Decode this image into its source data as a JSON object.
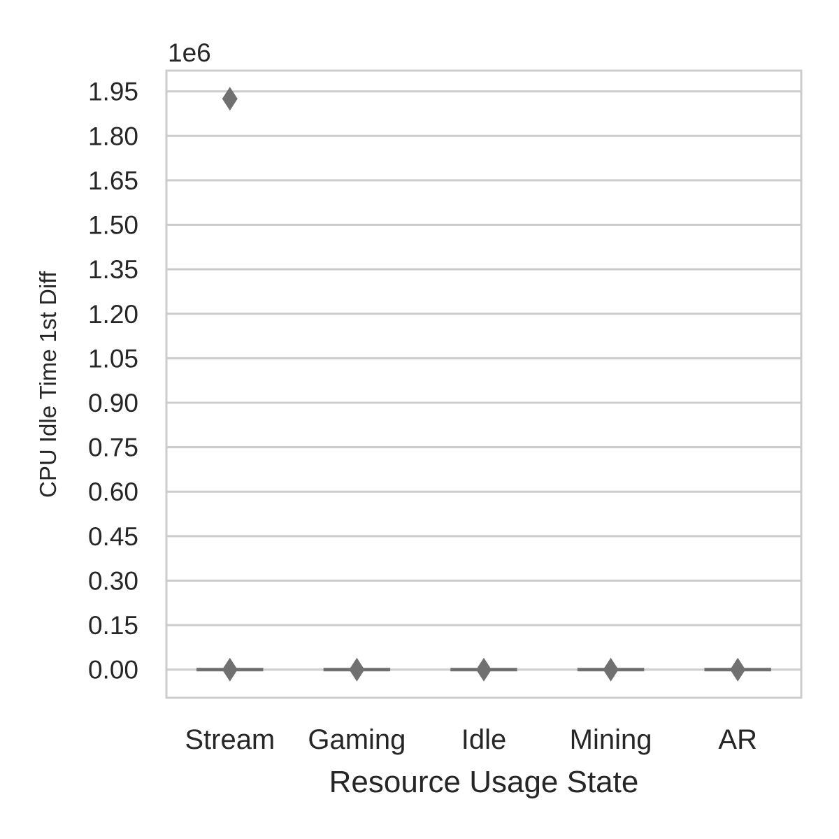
{
  "chart_data": {
    "type": "box",
    "xlabel": "Resource Usage State",
    "ylabel": "CPU Idle Time 1st Diff",
    "offset_label": "1e6",
    "categories": [
      "Stream",
      "Gaming",
      "Idle",
      "Mining",
      "AR"
    ],
    "y_ticks": [
      0.0,
      0.15,
      0.3,
      0.45,
      0.6,
      0.75,
      0.9,
      1.05,
      1.2,
      1.35,
      1.5,
      1.65,
      1.8,
      1.95
    ],
    "y_tick_labels": [
      "0.00",
      "0.15",
      "0.30",
      "0.45",
      "0.60",
      "0.75",
      "0.90",
      "1.05",
      "1.20",
      "1.35",
      "1.50",
      "1.65",
      "1.80",
      "1.95"
    ],
    "ylim": [
      -0.095,
      2.02
    ],
    "units_multiplier": 1000000,
    "boxes": [
      {
        "category": "Stream",
        "median": 0.0,
        "q1": 0.0,
        "q3": 0.0,
        "whisker_low": 0.0,
        "whisker_high": 0.0,
        "outliers": [
          0.0,
          1.925
        ]
      },
      {
        "category": "Gaming",
        "median": 0.0,
        "q1": 0.0,
        "q3": 0.0,
        "whisker_low": 0.0,
        "whisker_high": 0.0,
        "outliers": [
          0.0
        ]
      },
      {
        "category": "Idle",
        "median": 0.0,
        "q1": 0.0,
        "q3": 0.0,
        "whisker_low": 0.0,
        "whisker_high": 0.0,
        "outliers": [
          0.0
        ]
      },
      {
        "category": "Mining",
        "median": 0.0,
        "q1": 0.0,
        "q3": 0.0,
        "whisker_low": 0.0,
        "whisker_high": 0.0,
        "outliers": [
          0.0
        ]
      },
      {
        "category": "AR",
        "median": 0.0,
        "q1": 0.0,
        "q3": 0.0,
        "whisker_low": 0.0,
        "whisker_high": 0.0,
        "outliers": [
          0.0
        ]
      }
    ],
    "grid": true,
    "colors": {
      "box": "#707070",
      "grid": "#cccccc",
      "frame": "#cccccc",
      "text": "#262626"
    }
  }
}
